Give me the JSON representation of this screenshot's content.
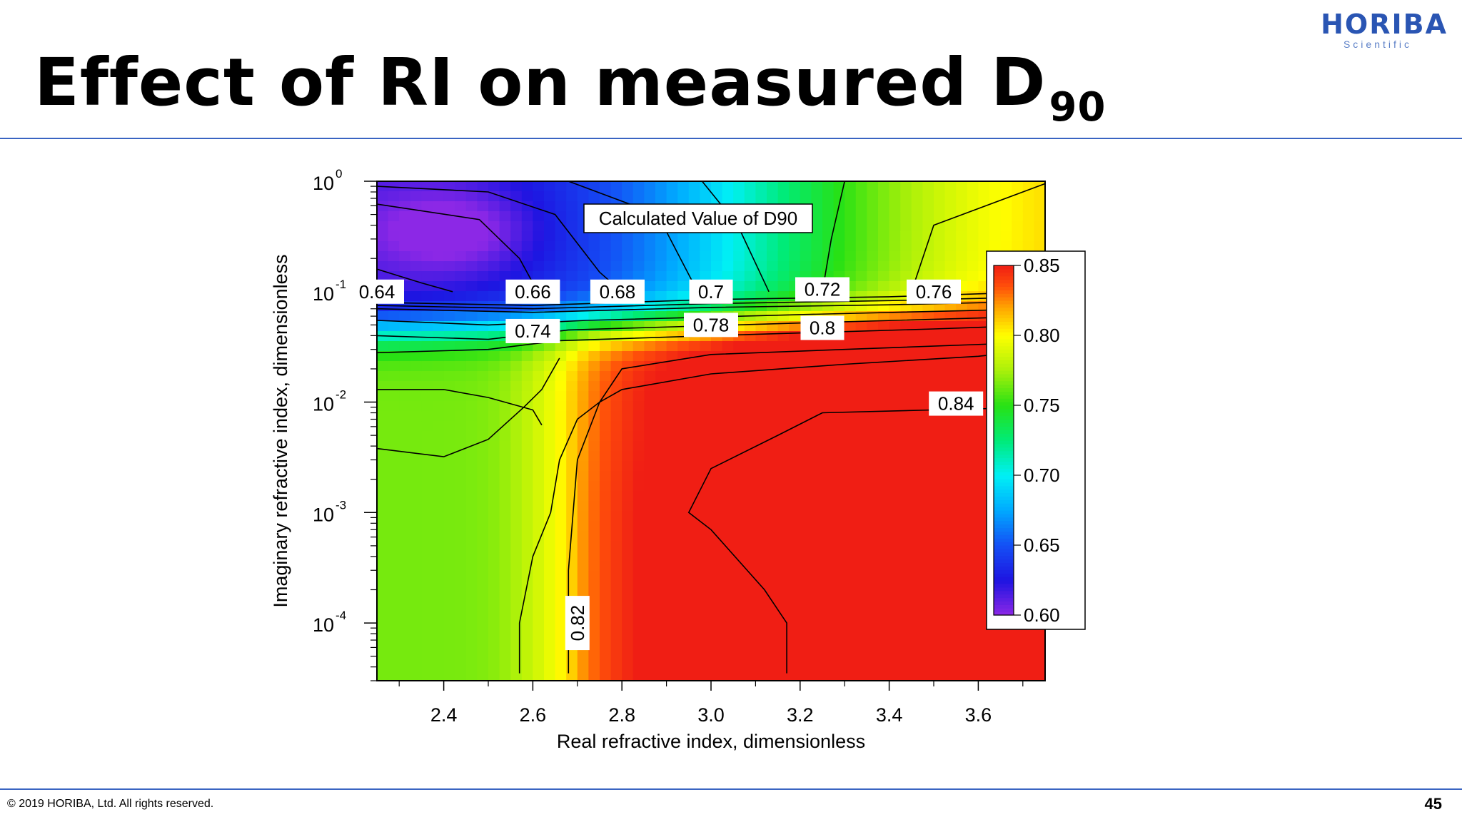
{
  "slide": {
    "title": "Effect of RI on measured D",
    "title_subscript": "90",
    "logo_main": "HORIBA",
    "logo_sub": "Scientific",
    "copyright": "© 2019 HORIBA, Ltd. All rights reserved.",
    "page_number": "45",
    "accent_color": "#3a64c2"
  },
  "chart_data": {
    "type": "heatmap",
    "title": "Calculated Value of D90",
    "xlabel": "Real refractive index, dimensionless",
    "ylabel": "Imaginary refractive index, dimensionless",
    "x_scale": "linear",
    "y_scale": "log",
    "xlim": [
      2.25,
      3.75
    ],
    "ylim": [
      3e-05,
      1.0
    ],
    "x_ticks": [
      2.4,
      2.6,
      2.8,
      3.0,
      3.2,
      3.4,
      3.6
    ],
    "x_tick_labels": [
      "2.4",
      "2.6",
      "2.8",
      "3.0",
      "3.2",
      "3.4",
      "3.6"
    ],
    "y_ticks": [
      0.0001,
      0.001,
      0.01,
      0.1,
      1.0
    ],
    "y_tick_bases": [
      "10",
      "10",
      "10",
      "10",
      "10"
    ],
    "y_tick_exponents": [
      "-4",
      "-3",
      "-2",
      "-1",
      "0"
    ],
    "colorbar": {
      "range": [
        0.6,
        0.85
      ],
      "ticks": [
        0.6,
        0.65,
        0.7,
        0.75,
        0.8,
        0.85
      ],
      "tick_labels": [
        "0.60",
        "0.65",
        "0.70",
        "0.75",
        "0.80",
        "0.85"
      ],
      "placement": "right-inside"
    },
    "contours": [
      {
        "level": "0.64",
        "points": [
          [
            2.25,
            0.16
          ],
          [
            2.35,
            0.12
          ],
          [
            2.42,
            0.1
          ]
        ]
      },
      {
        "level": "0.66",
        "points": [
          [
            2.25,
            0.62
          ],
          [
            2.48,
            0.45
          ],
          [
            2.57,
            0.2
          ],
          [
            2.6,
            0.12
          ],
          [
            2.64,
            0.1
          ]
        ]
      },
      {
        "level": "0.68",
        "points": [
          [
            2.25,
            0.9
          ],
          [
            2.5,
            0.8
          ],
          [
            2.65,
            0.5
          ],
          [
            2.75,
            0.15
          ],
          [
            2.8,
            0.1
          ]
        ]
      },
      {
        "level": "0.7",
        "points": [
          [
            2.68,
            1.0
          ],
          [
            2.88,
            0.5
          ],
          [
            2.97,
            0.1
          ]
        ]
      },
      {
        "level": "0.72",
        "points": [
          [
            2.98,
            1.0
          ],
          [
            3.06,
            0.4
          ],
          [
            3.13,
            0.1
          ]
        ]
      },
      {
        "level": "0.72",
        "points": [
          [
            3.3,
            1.0
          ],
          [
            3.27,
            0.3
          ],
          [
            3.25,
            0.1
          ]
        ]
      },
      {
        "level": "0.76",
        "points": [
          [
            3.75,
            0.95
          ],
          [
            3.5,
            0.4
          ],
          [
            3.45,
            0.1
          ]
        ]
      },
      {
        "level": "0.64",
        "points": [
          [
            2.25,
            0.08
          ],
          [
            2.6,
            0.075
          ],
          [
            3.0,
            0.085
          ],
          [
            3.4,
            0.09
          ],
          [
            3.75,
            0.1
          ]
        ]
      },
      {
        "level": "0.7",
        "points": [
          [
            2.25,
            0.075
          ],
          [
            2.6,
            0.07
          ],
          [
            3.0,
            0.078
          ],
          [
            3.4,
            0.083
          ],
          [
            3.75,
            0.09
          ]
        ]
      },
      {
        "level": "0.72",
        "points": [
          [
            2.25,
            0.07
          ],
          [
            2.6,
            0.065
          ],
          [
            3.0,
            0.072
          ],
          [
            3.4,
            0.076
          ],
          [
            3.75,
            0.082
          ]
        ]
      },
      {
        "level": "0.74",
        "points": [
          [
            2.25,
            0.055
          ],
          [
            2.5,
            0.05
          ],
          [
            2.72,
            0.055
          ],
          [
            3.2,
            0.062
          ],
          [
            3.75,
            0.07
          ]
        ]
      },
      {
        "level": "0.76",
        "points": [
          [
            2.25,
            0.04
          ],
          [
            2.5,
            0.037
          ],
          [
            2.68,
            0.045
          ],
          [
            3.2,
            0.052
          ],
          [
            3.75,
            0.06
          ]
        ]
      },
      {
        "level": "0.78",
        "points": [
          [
            2.25,
            0.028
          ],
          [
            2.5,
            0.03
          ],
          [
            2.66,
            0.036
          ],
          [
            3.0,
            0.04
          ],
          [
            3.5,
            0.046
          ],
          [
            3.75,
            0.05
          ]
        ]
      },
      {
        "level": "0.8",
        "points": [
          [
            3.75,
            0.035
          ],
          [
            3.3,
            0.03
          ],
          [
            3.0,
            0.027
          ],
          [
            2.8,
            0.02
          ],
          [
            2.75,
            0.01
          ],
          [
            2.7,
            0.003
          ],
          [
            2.68,
            0.0003
          ],
          [
            2.68,
            3.5e-05
          ]
        ]
      },
      {
        "level": "0.74",
        "points": [
          [
            2.25,
            0.013
          ],
          [
            2.4,
            0.013
          ],
          [
            2.5,
            0.011
          ],
          [
            2.6,
            0.0085
          ],
          [
            2.62,
            0.0062
          ]
        ]
      },
      {
        "level": "0.74",
        "points": [
          [
            2.25,
            0.0038
          ],
          [
            2.4,
            0.0032
          ],
          [
            2.5,
            0.0046
          ],
          [
            2.58,
            0.009
          ],
          [
            2.62,
            0.013
          ],
          [
            2.66,
            0.025
          ]
        ]
      },
      {
        "level": "0.82",
        "points": [
          [
            2.57,
            3.5e-05
          ],
          [
            2.57,
            0.0001
          ],
          [
            2.6,
            0.0004
          ],
          [
            2.64,
            0.001
          ],
          [
            2.66,
            0.003
          ],
          [
            2.7,
            0.007
          ],
          [
            2.75,
            0.01
          ],
          [
            2.8,
            0.013
          ],
          [
            3.0,
            0.018
          ],
          [
            3.3,
            0.022
          ],
          [
            3.6,
            0.026
          ],
          [
            3.75,
            0.03
          ]
        ]
      },
      {
        "level": "0.84",
        "points": [
          [
            3.17,
            3.5e-05
          ],
          [
            3.17,
            0.0001
          ],
          [
            3.12,
            0.0002
          ],
          [
            3.0,
            0.0007
          ],
          [
            2.95,
            0.001
          ],
          [
            3.0,
            0.0025
          ],
          [
            3.15,
            0.005
          ],
          [
            3.25,
            0.008
          ],
          [
            3.5,
            0.0085
          ],
          [
            3.75,
            0.009
          ]
        ]
      }
    ],
    "contour_labels": [
      {
        "text": "0.64",
        "x": 2.25,
        "y": 0.1
      },
      {
        "text": "0.66",
        "x": 2.6,
        "y": 0.1
      },
      {
        "text": "0.68",
        "x": 2.79,
        "y": 0.1
      },
      {
        "text": "0.7",
        "x": 3.0,
        "y": 0.1
      },
      {
        "text": "0.72",
        "x": 3.25,
        "y": 0.105
      },
      {
        "text": "0.76",
        "x": 3.5,
        "y": 0.1
      },
      {
        "text": "0.74",
        "x": 2.6,
        "y": 0.044
      },
      {
        "text": "0.78",
        "x": 3.0,
        "y": 0.05
      },
      {
        "text": "0.8",
        "x": 3.25,
        "y": 0.047
      },
      {
        "text": "0.84",
        "x": 3.55,
        "y": 0.0097
      },
      {
        "text": "0.82",
        "x": 2.7,
        "y": 0.0001,
        "rotated": true
      }
    ]
  }
}
